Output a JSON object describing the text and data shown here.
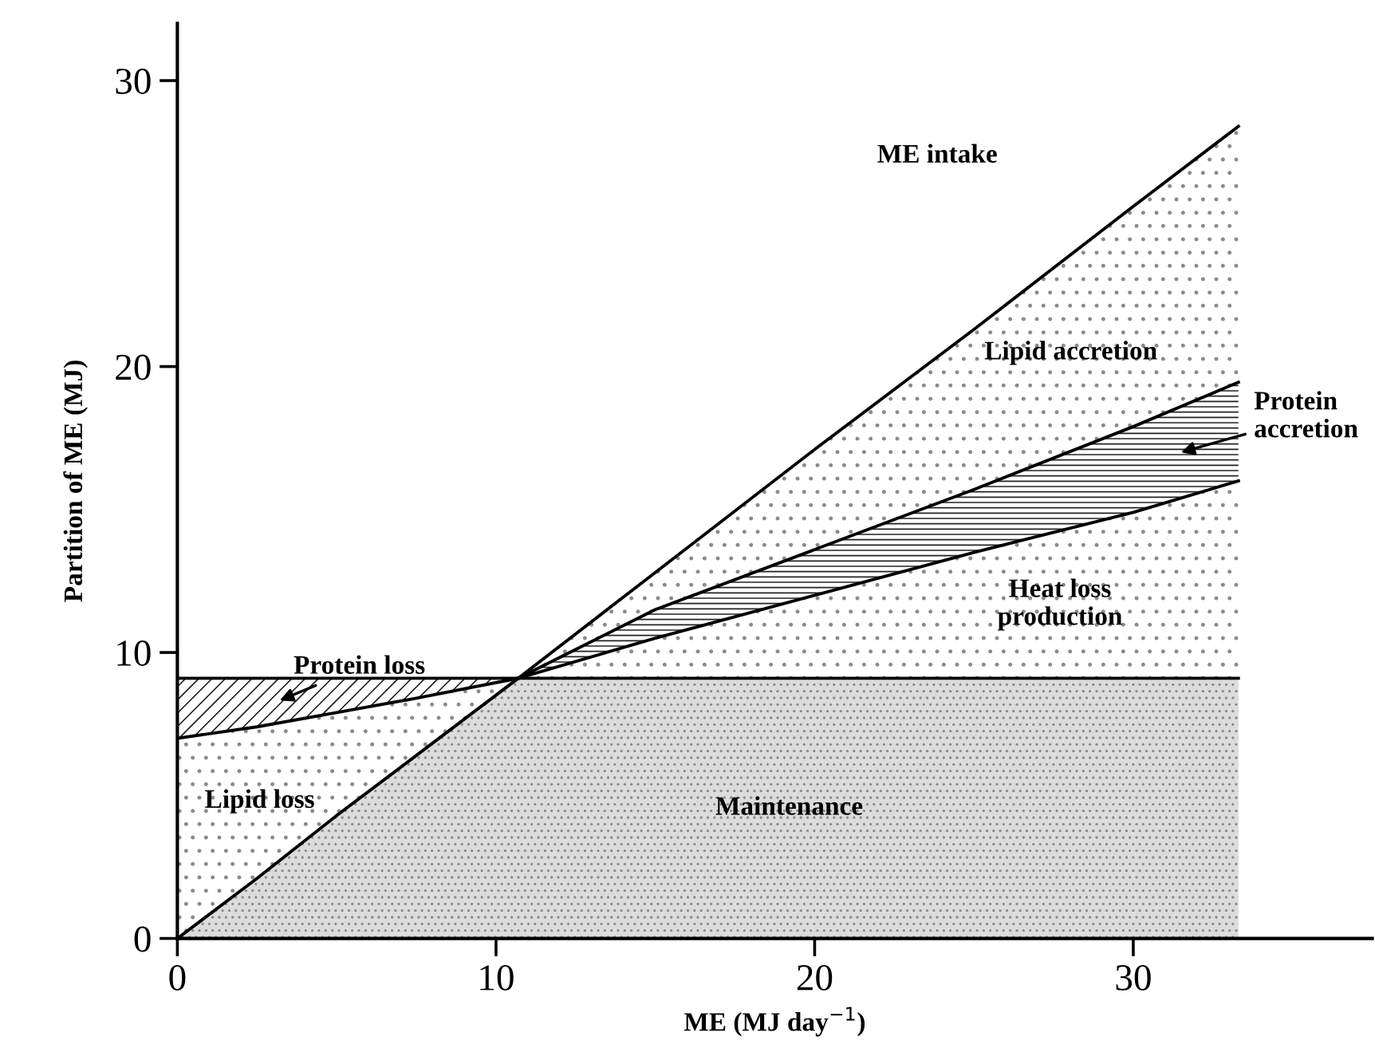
{
  "chart_data": {
    "type": "area",
    "stacked": true,
    "xlabel": "ME (MJ day$^{−1}$)",
    "ylabel": "Partition of ME (MJ)",
    "xlim": [
      0,
      37.5
    ],
    "ylim": [
      0,
      32
    ],
    "xticks": [
      0,
      10,
      20,
      30
    ],
    "yticks": [
      0,
      10,
      20,
      30
    ],
    "grid": false,
    "legend": false,
    "x": [
      0,
      2.5,
      5,
      7.5,
      10.7,
      15,
      20,
      25,
      30,
      33.3
    ],
    "series": [
      {
        "name": "Maintenance",
        "color": "#dcdcdc",
        "values": [
          0,
          2.1,
          4.3,
          6.4,
          9.1,
          9.1,
          9.1,
          9.1,
          9.1,
          9.1
        ]
      },
      {
        "name": "Lipid loss",
        "color": "#ffffff",
        "values": [
          7.0,
          5.3,
          3.6,
          2.0,
          0,
          null,
          null,
          null,
          null,
          null
        ]
      },
      {
        "name": "Protein loss",
        "color": "#ffffff",
        "values": [
          2.1,
          1.7,
          1.2,
          0.7,
          0,
          null,
          null,
          null,
          null,
          null
        ]
      },
      {
        "name": "Heat loss\nproduction",
        "color": "#ffffff",
        "values": [
          null,
          null,
          null,
          null,
          0,
          1.4,
          2.9,
          4.4,
          5.8,
          6.9
        ]
      },
      {
        "name": "Protein\naccretion",
        "color": "#ffffff",
        "values": [
          null,
          null,
          null,
          null,
          0,
          1.0,
          1.6,
          2.2,
          3.0,
          3.45
        ]
      },
      {
        "name": "Lipid accretion",
        "color": "#ffffff",
        "values": [
          null,
          null,
          null,
          null,
          0,
          1.3,
          3.5,
          5.6,
          7.7,
          8.95
        ]
      }
    ],
    "annotations": [
      "ME intake"
    ]
  }
}
